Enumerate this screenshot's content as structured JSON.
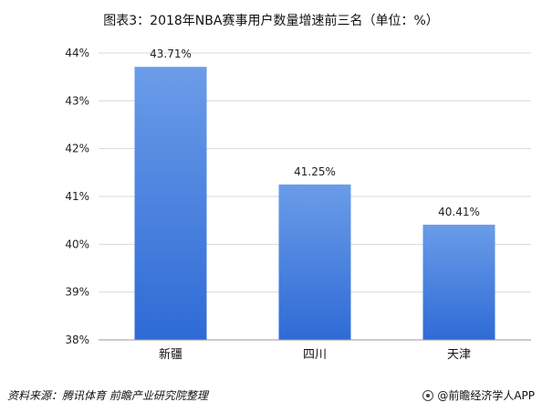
{
  "title": "图表3：2018年NBA赛事用户数量增速前三名（单位：%）",
  "chart_data": {
    "type": "bar",
    "categories": [
      "新疆",
      "四川",
      "天津"
    ],
    "values": [
      43.71,
      41.25,
      40.41
    ],
    "data_labels": [
      "43.71%",
      "41.25%",
      "40.41%"
    ],
    "ylim": [
      38,
      44
    ],
    "yticks": [
      "38%",
      "39%",
      "40%",
      "41%",
      "42%",
      "43%",
      "44%"
    ],
    "grid": true,
    "legend": "none",
    "bar_color_top": "#6a9ce8",
    "bar_color_bottom": "#2f6bd6"
  },
  "footer": {
    "source": "资料来源：腾讯体育  前瞻产业研究院整理",
    "brand": "@前瞻经济学人APP"
  }
}
